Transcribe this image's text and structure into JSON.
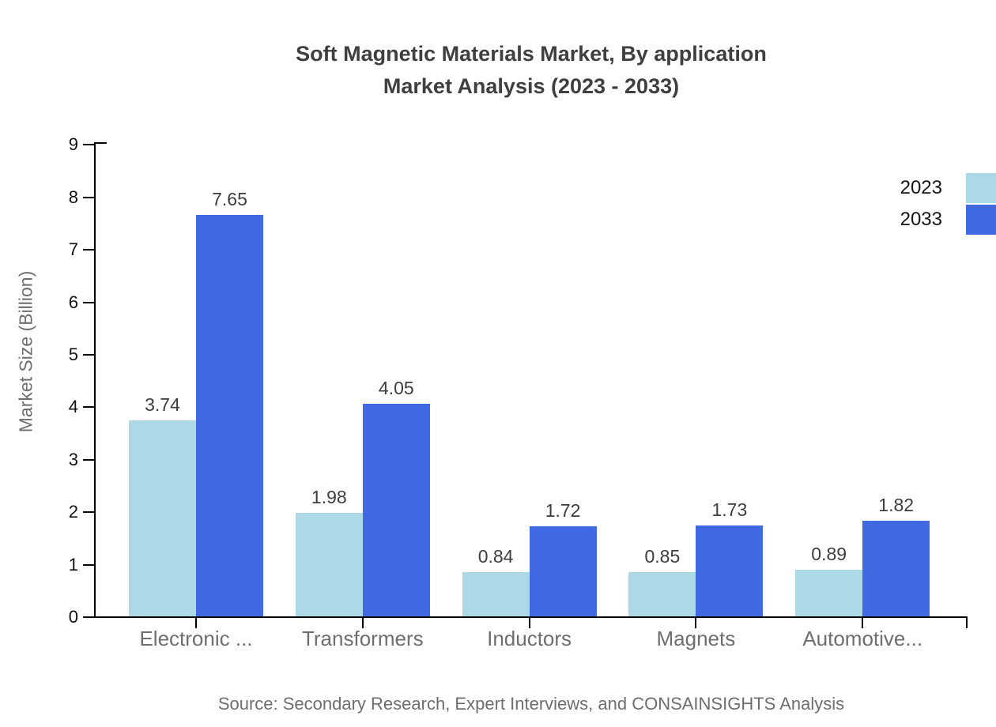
{
  "title": {
    "line1": "Soft Magnetic Materials Market, By application",
    "line2": "Market Analysis (2023 - 2033)"
  },
  "source": "Source: Secondary Research, Expert Interviews, and CONSAINSIGHTS Analysis",
  "colors": {
    "series_2023": "#ADD8E6",
    "series_2033": "#4169E1",
    "title_text": "#3F3F3F",
    "axis_text": "#111111",
    "muted_text": "#6E6E6E",
    "value_label_text": "#3D3D3D",
    "axis_line": "#000000"
  },
  "chart_data": {
    "type": "bar",
    "title": "Soft Magnetic Materials Market, By application Market Analysis (2023 - 2033)",
    "categories": [
      "Electronic ...",
      "Transformers",
      "Inductors",
      "Magnets",
      "Automotive..."
    ],
    "series": [
      {
        "name": "2023",
        "color": "#ADD8E6",
        "values": [
          3.74,
          1.98,
          0.84,
          0.85,
          0.89
        ]
      },
      {
        "name": "2033",
        "color": "#4169E1",
        "values": [
          7.65,
          4.05,
          1.72,
          1.73,
          1.82
        ]
      }
    ],
    "xlabel": "",
    "ylabel": "Market Size (Billion)",
    "ylim": [
      0,
      9
    ],
    "ytick_step": 1,
    "grid": false,
    "legend_position": "top-right",
    "value_labels": true,
    "value_label_format": "0.00"
  }
}
